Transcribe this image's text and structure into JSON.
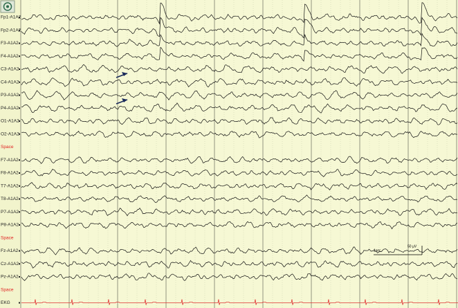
{
  "channels": [
    "Fp1-A1A2",
    "Fp2-A1A2",
    "F3-A1A2",
    "F4-A1A2",
    "C3-A1A2",
    "C4-A1A2",
    "P3-A1A2",
    "P4-A1A2",
    "O1-A1A2",
    "O2-A1A2",
    "Space",
    "F7-A1A2",
    "F8-A1A2",
    "T7-A1A2",
    "T8-A1A2",
    "P7-A1A2",
    "P8-A1A2",
    "Space",
    "Fz-A1A2",
    "Cz-A1A2",
    "Pz-A1A2",
    "Space",
    "EKG"
  ],
  "scale": {
    "amplitude": "50 µV",
    "time": "1sec"
  }
}
